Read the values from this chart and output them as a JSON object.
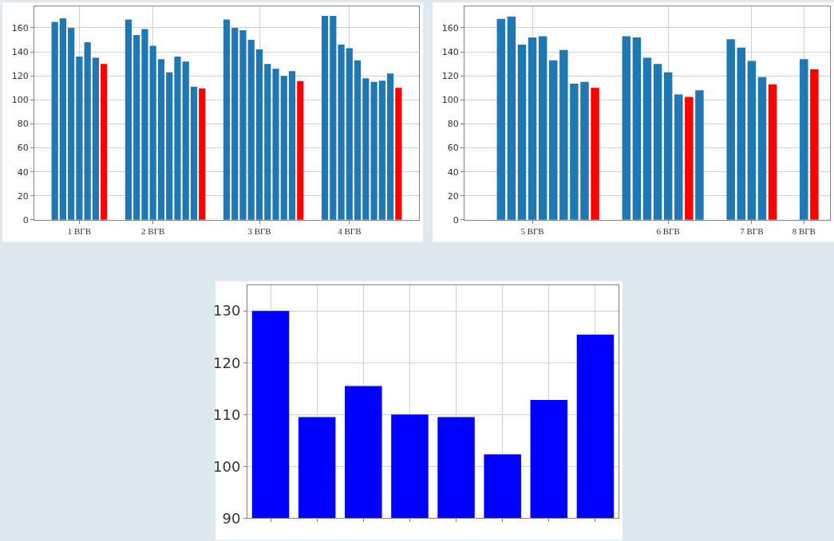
{
  "chart_data": [
    {
      "type": "bar",
      "categories": [
        null,
        null,
        null,
        null,
        null,
        "1 ВГВ",
        null,
        null,
        null,
        null,
        null,
        null,
        null,
        null,
        "2 ВГВ",
        null,
        null,
        null,
        null,
        null,
        null,
        null,
        null,
        null,
        null,
        null,
        null,
        "3 ВГВ",
        null,
        null,
        null,
        null,
        null,
        null,
        null,
        null,
        null,
        null,
        "4 ВГВ",
        null,
        null,
        null,
        null,
        null,
        null,
        null,
        null
      ],
      "values": [
        null,
        null,
        165,
        168,
        160,
        136,
        148,
        135,
        130,
        null,
        null,
        167,
        154,
        159,
        145,
        134,
        123,
        136,
        132,
        111,
        109.5,
        null,
        null,
        167,
        160,
        158,
        150,
        142,
        130,
        126,
        120,
        124,
        115.5,
        null,
        null,
        170,
        170,
        146,
        143,
        133,
        118,
        115,
        116,
        122,
        110,
        null,
        null
      ],
      "colors": [
        null,
        null,
        "#1f77b4",
        "#1f77b4",
        "#1f77b4",
        "#1f77b4",
        "#1f77b4",
        "#1f77b4",
        "#ff0000",
        null,
        null,
        "#1f77b4",
        "#1f77b4",
        "#1f77b4",
        "#1f77b4",
        "#1f77b4",
        "#1f77b4",
        "#1f77b4",
        "#1f77b4",
        "#1f77b4",
        "#ff0000",
        null,
        null,
        "#1f77b4",
        "#1f77b4",
        "#1f77b4",
        "#1f77b4",
        "#1f77b4",
        "#1f77b4",
        "#1f77b4",
        "#1f77b4",
        "#1f77b4",
        "#ff0000",
        null,
        null,
        "#1f77b4",
        "#1f77b4",
        "#1f77b4",
        "#1f77b4",
        "#1f77b4",
        "#1f77b4",
        "#1f77b4",
        "#1f77b4",
        "#1f77b4",
        "#ff0000",
        null,
        null
      ],
      "ylim": [
        0,
        178
      ],
      "yticks": [
        0,
        20,
        40,
        60,
        80,
        100,
        120,
        140,
        160
      ],
      "grid": true
    },
    {
      "type": "bar",
      "categories": [
        null,
        null,
        null,
        null,
        null,
        null,
        "5 ВГВ",
        null,
        null,
        null,
        null,
        null,
        null,
        null,
        null,
        null,
        null,
        null,
        null,
        "6 ВГВ",
        null,
        null,
        null,
        null,
        null,
        null,
        null,
        "7 ВГВ",
        null,
        null,
        null,
        null,
        "8 ВГВ",
        null,
        null
      ],
      "values": [
        null,
        null,
        null,
        167.5,
        169.5,
        146,
        152,
        153,
        133,
        141.5,
        113.5,
        115,
        110,
        null,
        null,
        153,
        152,
        135,
        130,
        123,
        104.5,
        102.3,
        108,
        null,
        null,
        150.5,
        143.5,
        132.5,
        119,
        112.8,
        null,
        null,
        134,
        125.4,
        null
      ],
      "colors": [
        null,
        null,
        null,
        "#1f77b4",
        "#1f77b4",
        "#1f77b4",
        "#1f77b4",
        "#1f77b4",
        "#1f77b4",
        "#1f77b4",
        "#1f77b4",
        "#1f77b4",
        "#ff0000",
        null,
        null,
        "#1f77b4",
        "#1f77b4",
        "#1f77b4",
        "#1f77b4",
        "#1f77b4",
        "#1f77b4",
        "#ff0000",
        "#1f77b4",
        null,
        null,
        "#1f77b4",
        "#1f77b4",
        "#1f77b4",
        "#1f77b4",
        "#ff0000",
        null,
        null,
        "#1f77b4",
        "#ff0000",
        null
      ],
      "ylim": [
        0,
        178
      ],
      "yticks": [
        0,
        20,
        40,
        60,
        80,
        100,
        120,
        140,
        160
      ],
      "grid": true
    },
    {
      "type": "bar",
      "categories": [
        null,
        null,
        null,
        null,
        null,
        null,
        null,
        null
      ],
      "values": [
        130,
        109.5,
        115.5,
        110,
        109.5,
        102.3,
        112.8,
        125.4
      ],
      "color": "#0000ff",
      "ylim": [
        90,
        135
      ],
      "yticks": [
        90,
        100,
        110,
        120,
        130
      ],
      "grid": true
    }
  ]
}
